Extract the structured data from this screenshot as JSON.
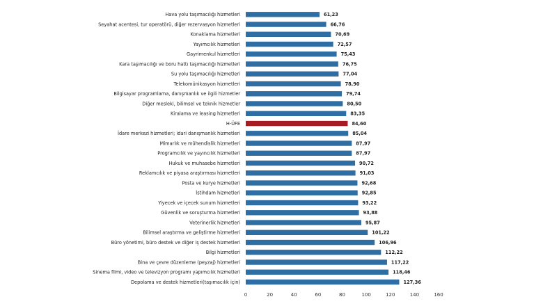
{
  "chart_data": {
    "type": "bar",
    "orientation": "horizontal",
    "categories": [
      "Hava yolu taşımacılığı hizmetleri",
      "Seyahat acentesi, tur operatörü, diğer rezervasyon hizmetleri",
      "Konaklama hizmetleri",
      "Yayımcılık hizmetleri",
      "Gayrimenkul hizmetleri",
      "Kara taşımacılığı ve boru hattı taşımacılığı hizmetleri",
      "Su yolu taşımacılığı hizmetleri",
      "Telekomünikasyon hizmetleri",
      "Bilgisayar programlama, danışmanlık ve ilgili hizmetler",
      "Diğer mesleki, bilimsel ve teknik hizmetler",
      "Kiralama ve leasing hizmetleri",
      "H-ÜFE",
      "İdare merkezi hizmetleri; idari danışmanlık hizmetleri",
      "Mimarlık ve mühendislik hizmetleri",
      "Programcılık ve yayıncılık hizmetleri",
      "Hukuk ve muhasebe hizmetleri",
      "Reklamcılık ve piyasa araştırması hizmetleri",
      "Posta ve kurye hizmetleri",
      "İstihdam hizmetleri",
      "Yiyecek ve içecek sunum hizmetleri",
      "Güvenlik ve soruşturma hizmetleri",
      "Veterinerlik hizmetleri",
      "Bilimsel araştırma ve geliştirme hizmetleri",
      "Büro yönetimi, büro destek ve diğer iş destek hizmetleri",
      "Bilgi hizmetleri",
      "Bina ve çevre düzenleme (peyzaj) hizmetleri",
      "Sinema filmi, video ve televizyon programı yapımcılık hizmetleri",
      "Depolama ve destek hizmetleri(taşımacılık için)"
    ],
    "values": [
      61.23,
      66.76,
      70.69,
      72.57,
      75.43,
      76.75,
      77.04,
      78.9,
      79.74,
      80.5,
      83.35,
      84.6,
      85.04,
      87.97,
      87.97,
      90.72,
      91.03,
      92.68,
      92.85,
      93.22,
      93.88,
      95.87,
      101.22,
      106.96,
      112.22,
      117.22,
      118.46,
      127.36
    ],
    "value_labels": [
      "61,23",
      "66,76",
      "70,69",
      "72,57",
      "75,43",
      "76,75",
      "77,04",
      "78,90",
      "79,74",
      "80,50",
      "83,35",
      "84,60",
      "85,04",
      "87,97",
      "87,97",
      "90,72",
      "91,03",
      "92,68",
      "92,85",
      "93,22",
      "93,88",
      "95,87",
      "101,22",
      "106,96",
      "112,22",
      "117,22",
      "118,46",
      "127,36"
    ],
    "highlight_category": "H-ÜFE",
    "xlim": [
      0,
      160
    ],
    "xticks": [
      "0",
      "20",
      "40",
      "60",
      "80",
      "100",
      "120",
      "140",
      "160"
    ],
    "grid": false,
    "legend": "none",
    "title": "",
    "xlabel": "",
    "ylabel": "",
    "colors": {
      "bar": "#2f6ea3",
      "highlight": "#a51c24"
    }
  }
}
